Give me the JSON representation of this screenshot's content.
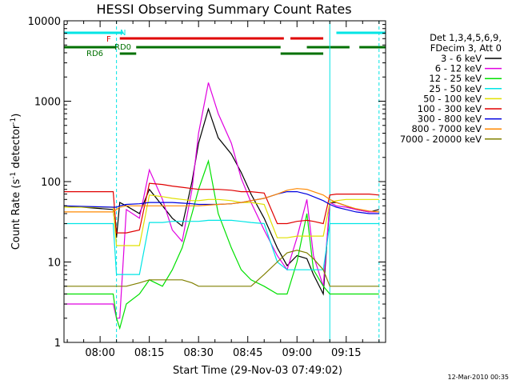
{
  "chart_data": {
    "type": "line",
    "title": "HESSI Observing Summary Count Rates",
    "xlabel": "Start Time (29-Nov-03 07:49:02)",
    "ylabel": "Count Rate (s",
    "ylabel_sup1": "-1",
    "ylabel_mid": " detector",
    "ylabel_sup2": "-1",
    "ylabel_end": ")",
    "y_scale": "log",
    "ylim": [
      1,
      10000
    ],
    "xlim": [
      "07:49",
      "09:27"
    ],
    "x_ticks": [
      "08:00",
      "08:15",
      "08:30",
      "08:45",
      "09:00",
      "09:15"
    ],
    "y_ticks": [
      "1",
      "10",
      "100",
      "1000",
      "10000"
    ],
    "footer_date": "12-Mar-2010 00:35",
    "legend_header": [
      "Det 1,3,4,5,6,9,",
      "FDecim 3, Att 0"
    ],
    "flag_labels": {
      "N": "N",
      "F": "F",
      "RD0": "RD0",
      "RD6": "RD6"
    },
    "flag_bars": [
      {
        "name": "N",
        "color": "#00e5e5",
        "segments": [
          [
            "07:49",
            "08:07"
          ],
          [
            "09:12",
            "09:27"
          ]
        ]
      },
      {
        "name": "F",
        "color": "#e00000",
        "segments": [
          [
            "08:06",
            "08:56"
          ],
          [
            "08:58",
            "09:08"
          ]
        ]
      },
      {
        "name": "RD0",
        "color": "#007000",
        "segments": [
          [
            "07:49",
            "08:05"
          ],
          [
            "08:11",
            "08:55"
          ],
          [
            "09:03",
            "09:16"
          ],
          [
            "09:19",
            "09:27"
          ]
        ]
      },
      {
        "name": "RD6",
        "color": "#007000",
        "segments": [
          [
            "08:06",
            "08:11"
          ],
          [
            "08:55",
            "09:08"
          ]
        ]
      }
    ],
    "vertical_lines": [
      {
        "time": "07:49",
        "style": "solid",
        "color": "#00e5e5"
      },
      {
        "time": "08:05",
        "style": "dashed",
        "color": "#00e5e5"
      },
      {
        "time": "09:10",
        "style": "solid",
        "color": "#00e5e5"
      },
      {
        "time": "09:25",
        "style": "dashed",
        "color": "#00e5e5"
      }
    ],
    "series": [
      {
        "name": "3 - 6 keV",
        "color": "#000000",
        "x": [
          "07:49",
          "08:04",
          "08:05",
          "08:06",
          "08:08",
          "08:12",
          "08:15",
          "08:19",
          "08:22",
          "08:25",
          "08:28",
          "08:30",
          "08:33",
          "08:36",
          "08:40",
          "08:43",
          "08:46",
          "08:50",
          "08:54",
          "08:57",
          "09:00",
          "09:03",
          "09:05",
          "09:08",
          "09:10",
          "09:12",
          "09:15",
          "09:18",
          "09:22",
          "09:25"
        ],
        "y": [
          50,
          45,
          20,
          55,
          50,
          40,
          80,
          50,
          35,
          28,
          100,
          300,
          800,
          350,
          220,
          130,
          70,
          35,
          15,
          9,
          12,
          11,
          7,
          4,
          55,
          55,
          50,
          45,
          42,
          45
        ]
      },
      {
        "name": "6 - 12 keV",
        "color": "#e000e0",
        "x": [
          "07:49",
          "08:04",
          "08:05",
          "08:06",
          "08:08",
          "08:12",
          "08:15",
          "08:19",
          "08:22",
          "08:25",
          "08:28",
          "08:30",
          "08:33",
          "08:36",
          "08:40",
          "08:43",
          "08:46",
          "08:50",
          "08:54",
          "08:57",
          "09:00",
          "09:03",
          "09:05",
          "09:08",
          "09:10",
          "09:12",
          "09:15",
          "09:18",
          "09:22",
          "09:25"
        ],
        "y": [
          3,
          3,
          2,
          2,
          45,
          35,
          140,
          60,
          25,
          18,
          80,
          400,
          1700,
          700,
          300,
          110,
          55,
          25,
          12,
          8,
          20,
          60,
          12,
          5,
          55,
          50,
          48,
          45,
          42,
          42
        ]
      },
      {
        "name": "12 - 25 keV",
        "color": "#00e000",
        "x": [
          "07:49",
          "08:04",
          "08:05",
          "08:06",
          "08:08",
          "08:12",
          "08:15",
          "08:19",
          "08:22",
          "08:25",
          "08:28",
          "08:30",
          "08:33",
          "08:36",
          "08:40",
          "08:43",
          "08:46",
          "08:50",
          "08:54",
          "08:57",
          "09:00",
          "09:03",
          "09:05",
          "09:08",
          "09:10",
          "09:12",
          "09:15",
          "09:18",
          "09:22",
          "09:25"
        ],
        "y": [
          4,
          4,
          2,
          1.5,
          3,
          4,
          6,
          5,
          8,
          15,
          40,
          80,
          180,
          40,
          15,
          8,
          6,
          5,
          4,
          4,
          10,
          40,
          8,
          5,
          4,
          4,
          4,
          4,
          4,
          4
        ]
      },
      {
        "name": "25 - 50 keV",
        "color": "#00e5e5",
        "x": [
          "07:49",
          "08:04",
          "08:05",
          "08:06",
          "08:08",
          "08:12",
          "08:15",
          "08:19",
          "08:22",
          "08:25",
          "08:28",
          "08:30",
          "08:33",
          "08:36",
          "08:40",
          "08:43",
          "08:46",
          "08:50",
          "08:54",
          "08:57",
          "09:00",
          "09:03",
          "09:05",
          "09:08",
          "09:10",
          "09:12",
          "09:15",
          "09:18",
          "09:22",
          "09:25"
        ],
        "y": [
          30,
          30,
          7,
          7,
          7,
          7,
          31,
          31,
          32,
          32,
          32,
          32,
          33,
          33,
          33,
          32,
          31,
          30,
          10,
          8,
          8,
          8,
          8,
          8,
          30,
          30,
          30,
          30,
          30,
          30
        ]
      },
      {
        "name": "50 - 100 keV",
        "color": "#e0e000",
        "x": [
          "07:49",
          "08:04",
          "08:05",
          "08:06",
          "08:08",
          "08:12",
          "08:15",
          "08:19",
          "08:22",
          "08:25",
          "08:28",
          "08:30",
          "08:33",
          "08:36",
          "08:40",
          "08:43",
          "08:46",
          "08:50",
          "08:54",
          "08:57",
          "09:00",
          "09:03",
          "09:05",
          "09:08",
          "09:10",
          "09:12",
          "09:15",
          "09:18",
          "09:22",
          "09:25"
        ],
        "y": [
          48,
          48,
          16,
          16,
          16,
          16,
          68,
          65,
          62,
          60,
          58,
          58,
          60,
          60,
          58,
          55,
          55,
          52,
          20,
          20,
          21,
          21,
          21,
          21,
          55,
          58,
          60,
          60,
          60,
          60
        ]
      },
      {
        "name": "100 - 300 keV",
        "color": "#e00000",
        "x": [
          "07:49",
          "08:04",
          "08:05",
          "08:06",
          "08:08",
          "08:12",
          "08:15",
          "08:19",
          "08:22",
          "08:25",
          "08:28",
          "08:30",
          "08:33",
          "08:36",
          "08:40",
          "08:43",
          "08:46",
          "08:50",
          "08:54",
          "08:57",
          "09:00",
          "09:03",
          "09:05",
          "09:08",
          "09:10",
          "09:12",
          "09:15",
          "09:18",
          "09:22",
          "09:25"
        ],
        "y": [
          75,
          75,
          23,
          23,
          23,
          25,
          95,
          92,
          88,
          85,
          82,
          80,
          80,
          80,
          78,
          75,
          75,
          72,
          30,
          30,
          32,
          33,
          32,
          30,
          68,
          70,
          70,
          70,
          70,
          68
        ]
      },
      {
        "name": "300 - 800 keV",
        "color": "#0000e0",
        "x": [
          "07:49",
          "08:04",
          "08:05",
          "08:06",
          "08:08",
          "08:12",
          "08:15",
          "08:19",
          "08:22",
          "08:25",
          "08:28",
          "08:30",
          "08:33",
          "08:36",
          "08:40",
          "08:43",
          "08:46",
          "08:50",
          "08:54",
          "08:57",
          "09:00",
          "09:03",
          "09:05",
          "09:08",
          "09:10",
          "09:12",
          "09:15",
          "09:18",
          "09:22",
          "09:25"
        ],
        "y": [
          50,
          48,
          48,
          50,
          52,
          53,
          55,
          55,
          55,
          54,
          53,
          52,
          52,
          52,
          53,
          55,
          58,
          62,
          70,
          75,
          75,
          70,
          65,
          58,
          52,
          48,
          45,
          42,
          40,
          40
        ]
      },
      {
        "name": "800 - 7000 keV",
        "color": "#ff8800",
        "x": [
          "07:49",
          "08:04",
          "08:05",
          "08:06",
          "08:08",
          "08:12",
          "08:15",
          "08:19",
          "08:22",
          "08:25",
          "08:28",
          "08:30",
          "08:33",
          "08:36",
          "08:40",
          "08:43",
          "08:46",
          "08:50",
          "08:54",
          "08:57",
          "09:00",
          "09:03",
          "09:05",
          "09:08",
          "09:10",
          "09:12",
          "09:15",
          "09:18",
          "09:22",
          "09:25"
        ],
        "y": [
          42,
          42,
          45,
          48,
          50,
          50,
          50,
          50,
          50,
          50,
          50,
          50,
          51,
          52,
          53,
          55,
          58,
          62,
          70,
          78,
          82,
          80,
          75,
          68,
          60,
          55,
          50,
          46,
          43,
          42
        ]
      },
      {
        "name": "7000 - 20000 keV",
        "color": "#808000",
        "x": [
          "07:49",
          "08:04",
          "08:05",
          "08:06",
          "08:08",
          "08:12",
          "08:15",
          "08:19",
          "08:22",
          "08:25",
          "08:28",
          "08:30",
          "08:33",
          "08:36",
          "08:40",
          "08:43",
          "08:46",
          "08:50",
          "08:54",
          "08:57",
          "09:00",
          "09:03",
          "09:05",
          "09:08",
          "09:10",
          "09:12",
          "09:15",
          "09:18",
          "09:22",
          "09:25"
        ],
        "y": [
          5,
          5,
          5,
          5,
          5,
          5.5,
          6,
          6,
          6,
          6,
          5.5,
          5,
          5,
          5,
          5,
          5,
          5,
          7,
          10,
          13,
          14,
          13,
          11,
          8,
          5,
          5,
          5,
          5,
          5,
          5
        ]
      }
    ]
  }
}
